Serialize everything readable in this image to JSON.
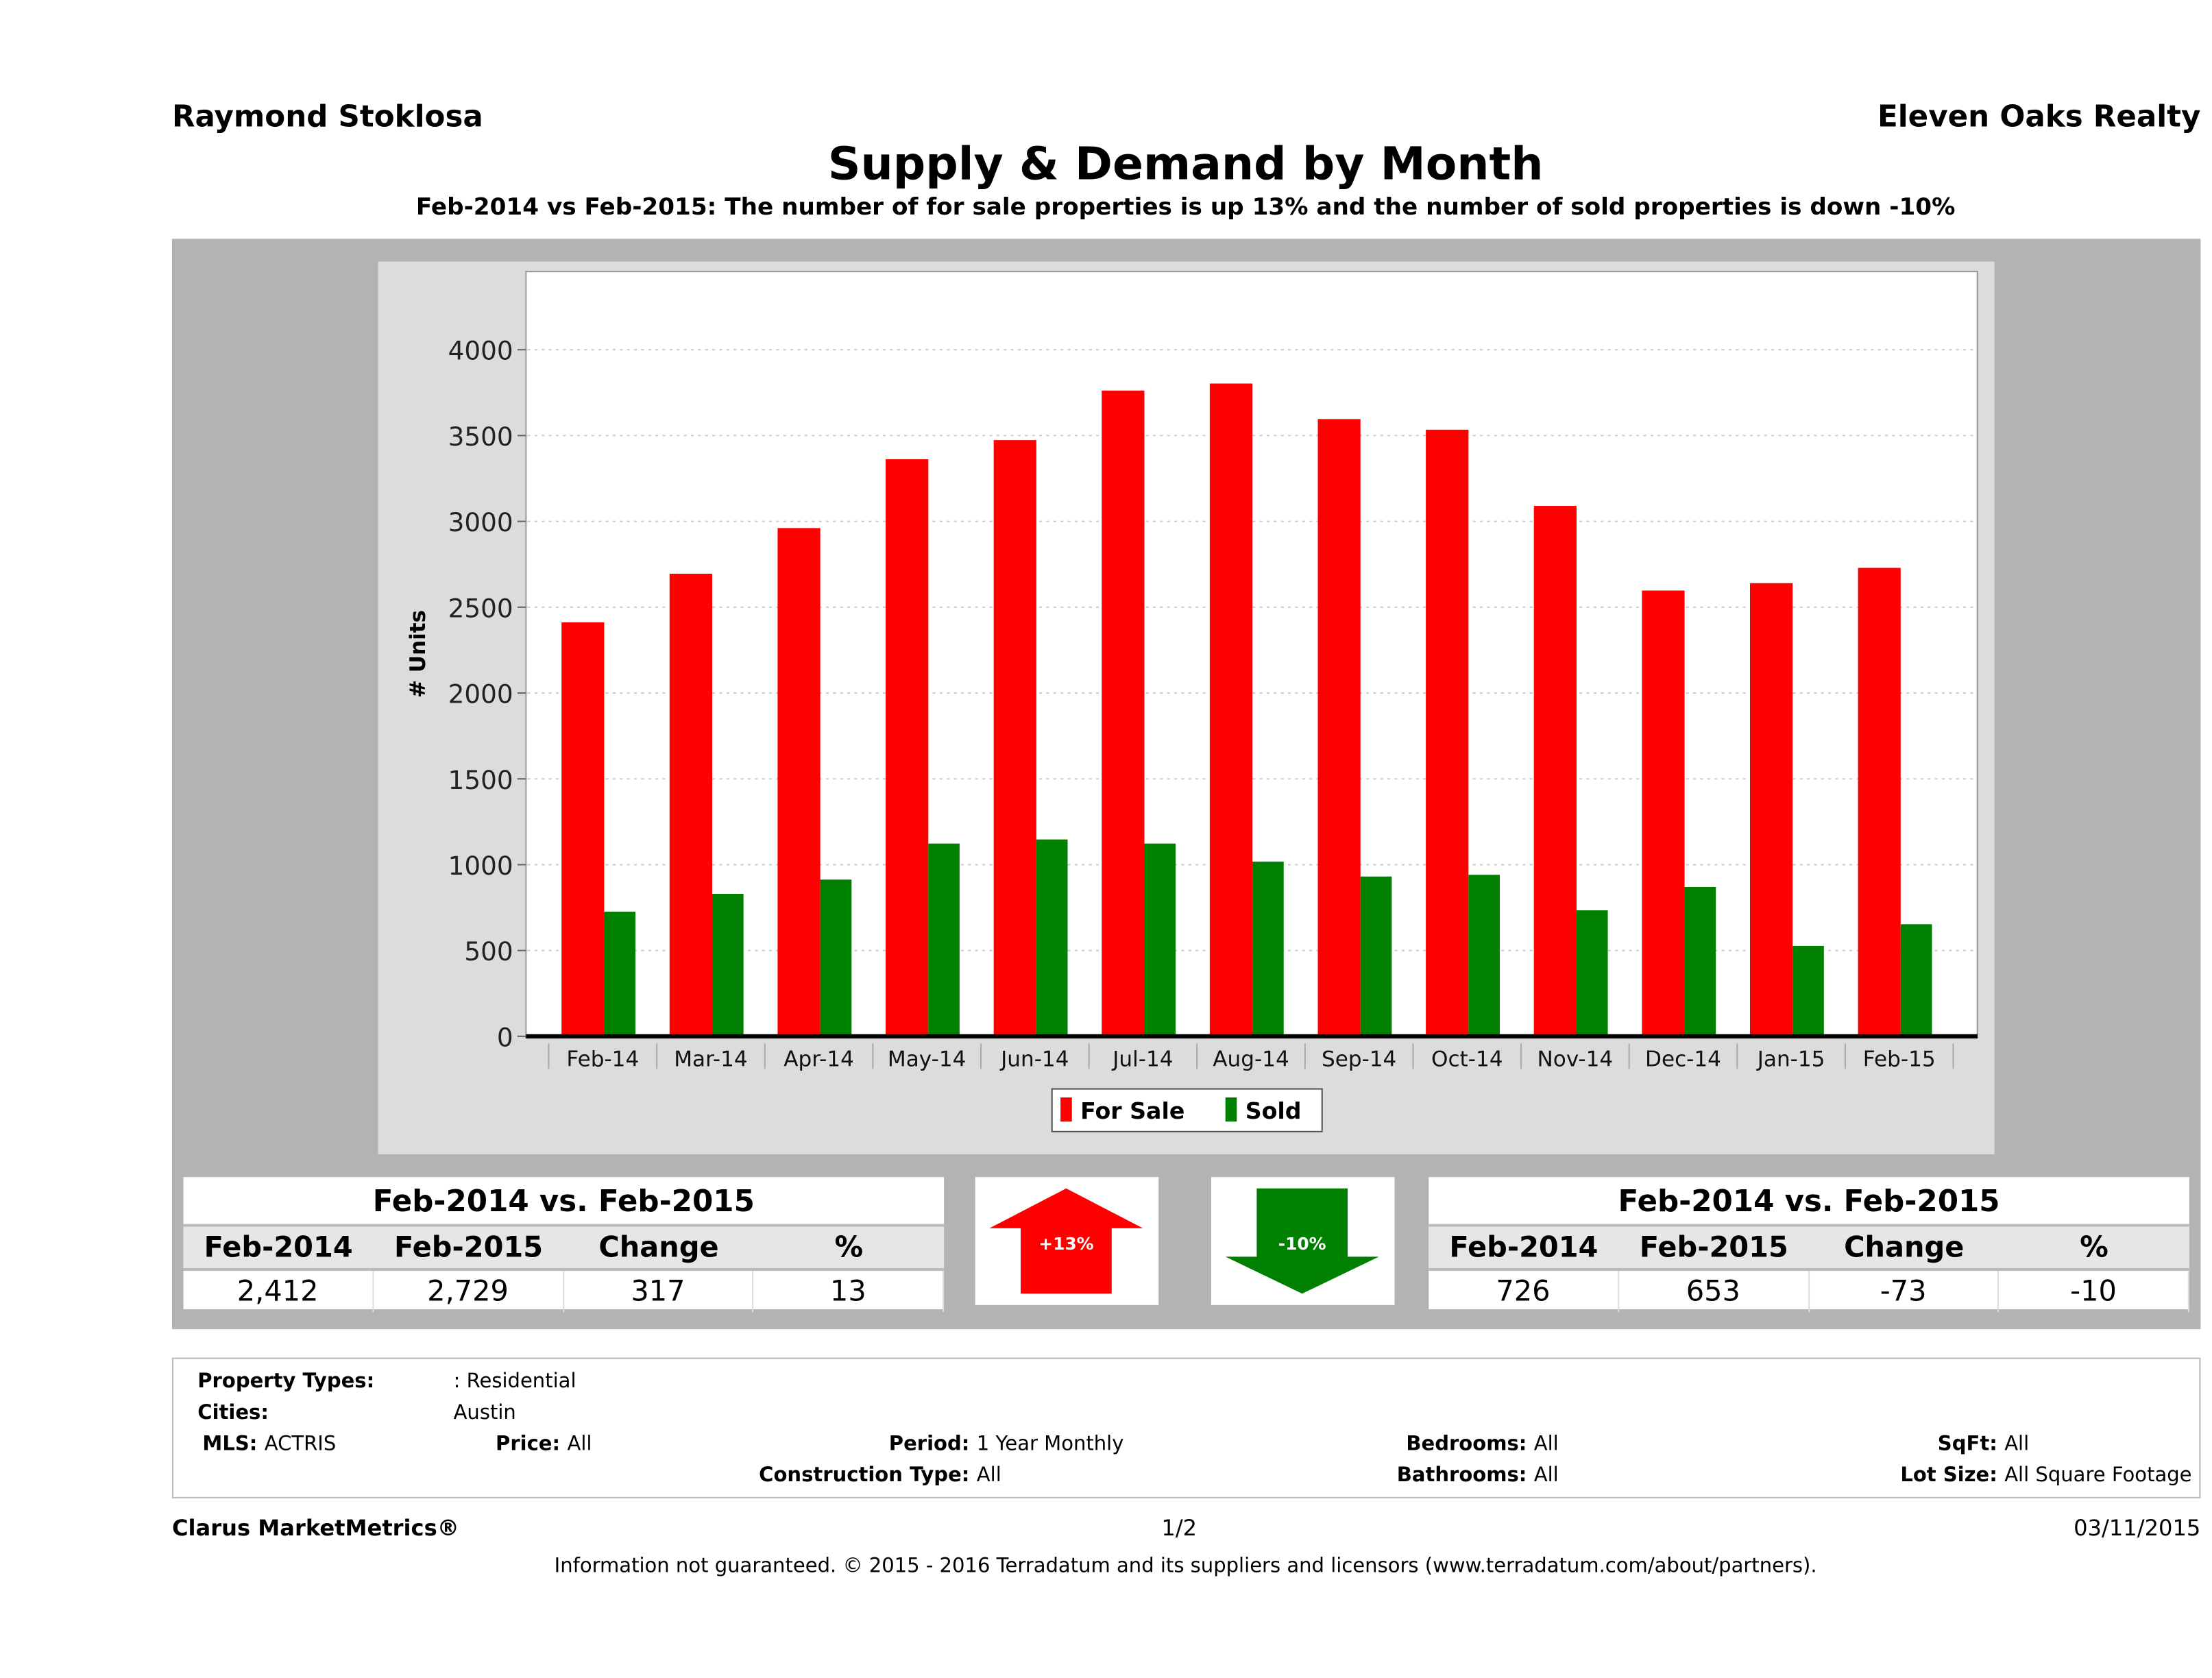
{
  "header": {
    "agent": "Raymond Stoklosa",
    "brand": "Eleven Oaks Realty",
    "title": "Supply & Demand by Month",
    "subtitle": "Feb-2014 vs Feb-2015: The number of for sale properties is up 13% and the number of sold properties is down -10%"
  },
  "chart_data": {
    "type": "bar",
    "ylabel": "# Units",
    "ylim": [
      0,
      4400
    ],
    "yticks": [
      "0",
      "500",
      "1000",
      "1500",
      "2000",
      "2500",
      "3000",
      "3500",
      "4000"
    ],
    "grid": true,
    "legend": "bottom",
    "categories": [
      "Feb-14",
      "Mar-14",
      "Apr-14",
      "May-14",
      "Jun-14",
      "Jul-14",
      "Aug-14",
      "Sep-14",
      "Oct-14",
      "Nov-14",
      "Dec-14",
      "Jan-15",
      "Feb-15"
    ],
    "series": [
      {
        "name": "For Sale",
        "color": "#ff0000",
        "values": [
          2412,
          2695,
          2961,
          3362,
          3473,
          3762,
          3803,
          3596,
          3534,
          3090,
          2597,
          2640,
          2729
        ]
      },
      {
        "name": "Sold",
        "color": "#008000",
        "values": [
          726,
          830,
          913,
          1123,
          1147,
          1123,
          1018,
          931,
          941,
          734,
          870,
          527,
          653
        ]
      }
    ]
  },
  "for_sale_table": {
    "title": "Feb-2014 vs. Feb-2015",
    "headers": [
      "Feb-2014",
      "Feb-2015",
      "Change",
      "%"
    ],
    "values": [
      "2,412",
      "2,729",
      "317",
      "13"
    ]
  },
  "sold_table": {
    "title": "Feb-2014 vs. Feb-2015",
    "headers": [
      "Feb-2014",
      "Feb-2015",
      "Change",
      "%"
    ],
    "values": [
      "726",
      "653",
      "-73",
      "-10"
    ]
  },
  "arrows": {
    "up": {
      "label": "+13%",
      "color": "#ff0000",
      "icon": "arrow-up-icon"
    },
    "down": {
      "label": "-10%",
      "color": "#008000",
      "icon": "arrow-down-icon"
    }
  },
  "info": {
    "property_types_label": "Property Types:",
    "property_types": ": Residential",
    "cities_label": "Cities:",
    "cities": "Austin",
    "mls_label": "MLS:",
    "mls": "ACTRIS",
    "price_label": "Price:",
    "price": "All",
    "period_label": "Period:",
    "period": "1 Year Monthly",
    "construction_label": "Construction Type:",
    "construction": "All",
    "bedrooms_label": "Bedrooms:",
    "bedrooms": "All",
    "bathrooms_label": "Bathrooms:",
    "bathrooms": "All",
    "sqft_label": "SqFt:",
    "sqft": "All",
    "lot_label": "Lot Size:",
    "lot": "All Square Footage"
  },
  "footer": {
    "product": "Clarus MarketMetrics®",
    "page": "1/2",
    "date": "03/11/2015",
    "note": "Information not guaranteed. © 2015 - 2016 Terradatum and its suppliers and licensors (www.terradatum.com/about/partners)."
  }
}
